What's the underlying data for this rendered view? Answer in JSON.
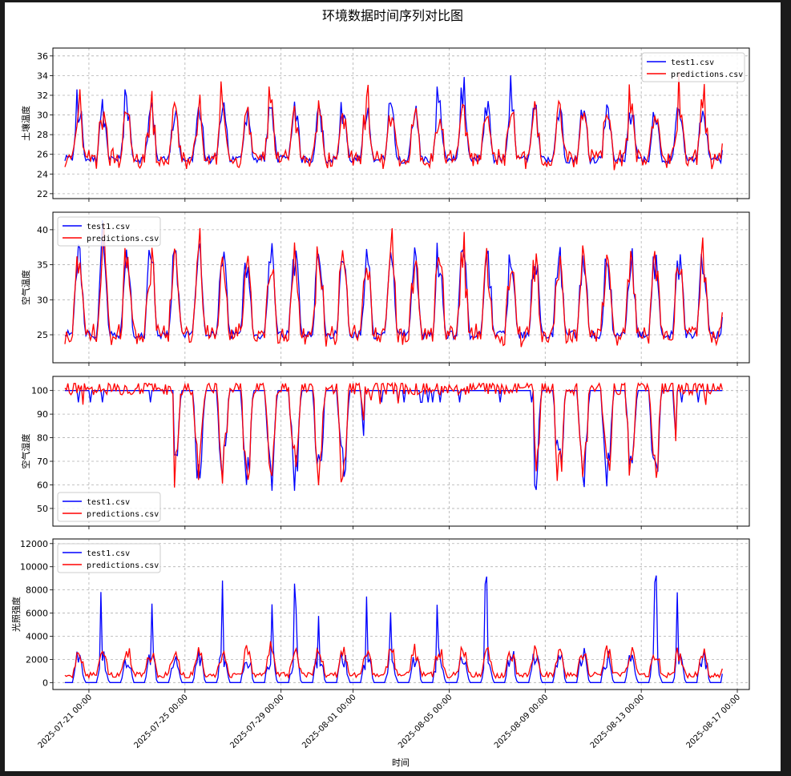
{
  "figure": {
    "title": "环境数据时间序列对比图",
    "xlabel": "时间"
  },
  "chart_data": [
    {
      "type": "line",
      "ylabel": "土壤温度",
      "ylim": [
        21.5,
        36.8
      ],
      "yticks": [
        22,
        24,
        26,
        28,
        30,
        32,
        34,
        36
      ],
      "grid": true,
      "legend": "top-right",
      "series": [
        {
          "name": "test1.csv",
          "color": "#0000ff"
        },
        {
          "name": "predictions.csv",
          "color": "#ff0000"
        }
      ],
      "pattern": {
        "base": 25.5,
        "amp": 5.0,
        "noise": 0.8,
        "spike": 4.0
      }
    },
    {
      "type": "line",
      "ylabel": "空气温度",
      "ylim": [
        21.0,
        42.5
      ],
      "yticks": [
        25,
        30,
        35,
        40
      ],
      "grid": true,
      "legend": "top-left",
      "series": [
        {
          "name": "test1.csv",
          "color": "#0000ff"
        },
        {
          "name": "predictions.csv",
          "color": "#ff0000"
        }
      ],
      "pattern": {
        "base": 25.0,
        "amp": 11.0,
        "noise": 1.2,
        "spike": 5.0
      }
    },
    {
      "type": "line",
      "ylabel": "空气湿度",
      "ylim": [
        42.5,
        106.0
      ],
      "yticks": [
        50,
        60,
        70,
        80,
        90,
        100
      ],
      "grid": true,
      "legend": "bottom-left",
      "series": [
        {
          "name": "test1.csv",
          "color": "#0000ff"
        },
        {
          "name": "predictions.csv",
          "color": "#ff0000"
        }
      ],
      "pattern": {
        "base": 100,
        "amp": -40,
        "noise": 3.0,
        "spike": 8.0
      }
    },
    {
      "type": "line",
      "ylabel": "光照强度",
      "ylim": [
        -600,
        12400
      ],
      "yticks": [
        0,
        2000,
        4000,
        6000,
        8000,
        10000,
        12000
      ],
      "grid": true,
      "legend": "top-left",
      "series": [
        {
          "name": "test1.csv",
          "color": "#0000ff"
        },
        {
          "name": "predictions.csv",
          "color": "#ff0000"
        }
      ],
      "pattern": {
        "base": 0,
        "amp": 2500,
        "noise": 500,
        "spike": 9500
      }
    }
  ],
  "x_axis": {
    "start": "2025-07-19 12:00",
    "end": "2025-08-17 12:00",
    "data_start": "2025-07-20",
    "data_end": "2025-08-16",
    "ticks": [
      "2025-07-21 00:00",
      "2025-07-25 00:00",
      "2025-07-29 00:00",
      "2025-08-01 00:00",
      "2025-08-05 00:00",
      "2025-08-09 00:00",
      "2025-08-13 00:00",
      "2025-08-17 00:00"
    ]
  }
}
